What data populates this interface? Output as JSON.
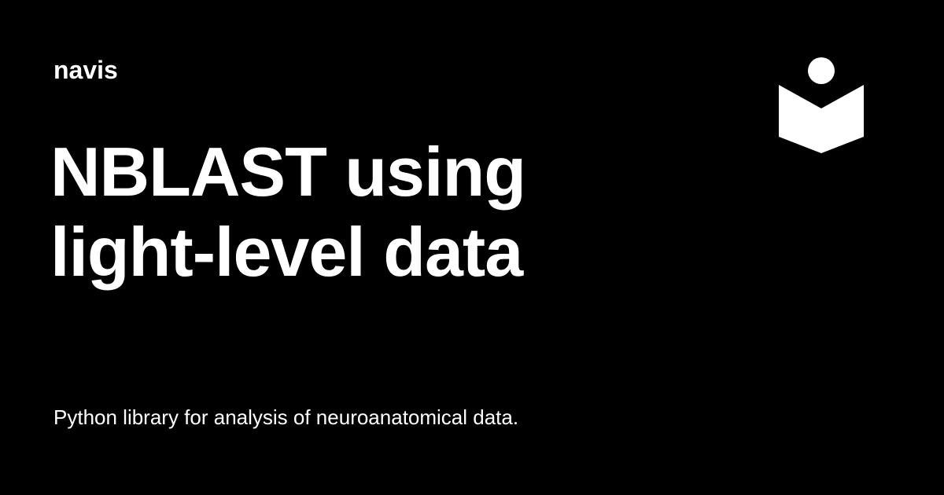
{
  "card": {
    "site_name": "navis",
    "title_line_1": "NBLAST using",
    "title_line_2": "light-level data",
    "description": "Python library for analysis of neuroanatomical data.",
    "logo_icon": "reader-book-icon",
    "colors": {
      "background": "#000000",
      "foreground": "#ffffff"
    }
  }
}
